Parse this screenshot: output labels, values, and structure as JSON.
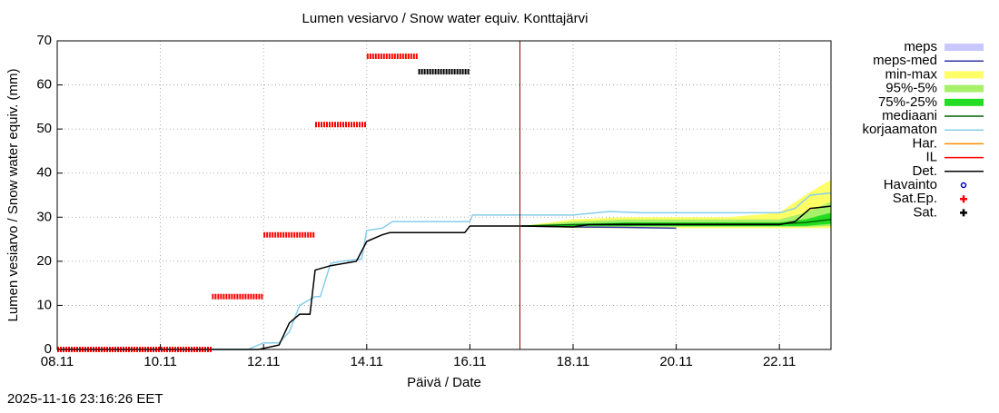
{
  "chart_data": {
    "type": "line",
    "title": "Lumen vesiarvo / Snow water equiv.  Konttajärvi",
    "x_label": "Päivä / Date",
    "y_label": "Lumen vesiarvo / Snow water equiv. (mm)",
    "footer": "2025-11-16 23:16:26 EET",
    "xlim": [
      8,
      23
    ],
    "xticks": [
      {
        "value": 8,
        "label": "08.11"
      },
      {
        "value": 10,
        "label": "10.11"
      },
      {
        "value": 12,
        "label": "12.11"
      },
      {
        "value": 14,
        "label": "14.11"
      },
      {
        "value": 16,
        "label": "16.11"
      },
      {
        "value": 18,
        "label": "18.11"
      },
      {
        "value": 20,
        "label": "20.11"
      },
      {
        "value": 22,
        "label": "22.11"
      }
    ],
    "ylim": [
      0,
      70
    ],
    "yticks": [
      0,
      10,
      20,
      30,
      40,
      50,
      60,
      70
    ],
    "grid": true,
    "legend": "outside-right",
    "now_line": {
      "x": 16.97,
      "color": "#8b0000"
    },
    "series": [
      {
        "name": "meps",
        "kind": "band",
        "color": "#c8c8ff",
        "x": [],
        "low": [],
        "values": []
      },
      {
        "name": "meps-med",
        "kind": "line",
        "color": "#3333aa",
        "x": [
          17,
          18,
          19,
          20
        ],
        "values": [
          28,
          27.8,
          27.7,
          27.5
        ]
      },
      {
        "name": "min-max",
        "kind": "band",
        "color": "#ffff66",
        "x": [
          17,
          18,
          19,
          20,
          21,
          22,
          22.5,
          23
        ],
        "low": [
          28,
          27.5,
          27.5,
          27.5,
          27.5,
          27.5,
          27.5,
          27.5
        ],
        "values": [
          28,
          29.5,
          30,
          30,
          30,
          31,
          35,
          38.5
        ]
      },
      {
        "name": "95%-5%",
        "kind": "band",
        "color": "#a6f06a",
        "x": [
          17,
          18,
          19,
          20,
          21,
          22,
          22.5,
          23
        ],
        "low": [
          28,
          27.8,
          27.8,
          27.8,
          27.8,
          27.8,
          27.8,
          28
        ],
        "values": [
          28,
          29,
          29.5,
          29.5,
          29.5,
          29.5,
          31,
          33.5
        ]
      },
      {
        "name": "75%-25%",
        "kind": "band",
        "color": "#22dd22",
        "x": [
          17,
          18,
          19,
          20,
          21,
          22,
          22.5,
          23
        ],
        "low": [
          28,
          28,
          28,
          28,
          28,
          28,
          28,
          28.5
        ],
        "values": [
          28,
          28.5,
          28.8,
          28.8,
          28.8,
          28.8,
          29.5,
          31
        ]
      },
      {
        "name": "mediaani",
        "kind": "line",
        "color": "#006400",
        "x": [
          17,
          18,
          19,
          20,
          21,
          22,
          22.5,
          23
        ],
        "values": [
          28,
          28.3,
          28.5,
          28.5,
          28.5,
          28.5,
          28.8,
          29.5
        ]
      },
      {
        "name": "korjaamaton",
        "kind": "line",
        "color": "#87ceeb",
        "x": [
          8,
          11.7,
          12.0,
          12.3,
          12.5,
          12.7,
          13.0,
          13.1,
          13.3,
          13.5,
          13.9,
          14.0,
          14.3,
          14.5,
          16.0,
          16.05,
          18,
          18.7,
          19.3,
          22,
          22.3,
          22.6,
          23
        ],
        "values": [
          0,
          0,
          1.5,
          1.5,
          4,
          10,
          12,
          12,
          19.5,
          20,
          20.5,
          27,
          27.5,
          29,
          29,
          30.5,
          30.5,
          31.3,
          31,
          31,
          32,
          35,
          35.5
        ]
      },
      {
        "name": "Har.",
        "kind": "line",
        "color": "#ff8c00",
        "x": [],
        "values": []
      },
      {
        "name": "IL",
        "kind": "line",
        "color": "#ff0000",
        "x": [],
        "values": []
      },
      {
        "name": "Det.",
        "kind": "line",
        "color": "#000000",
        "x": [
          8,
          11.9,
          12.3,
          12.5,
          12.7,
          12.9,
          13.0,
          13.3,
          13.8,
          14.0,
          14.3,
          14.45,
          15.9,
          16.0,
          17,
          18,
          18.3,
          22,
          22.3,
          22.6,
          23
        ],
        "values": [
          0,
          0,
          1,
          6,
          8,
          8,
          18,
          19,
          20,
          24.5,
          26,
          26.5,
          26.5,
          28,
          28,
          27.8,
          28.3,
          28.3,
          29,
          32,
          32.5
        ]
      },
      {
        "name": "Havainto",
        "kind": "points",
        "marker": "circle",
        "color": "#0000cc",
        "x": [],
        "values": []
      },
      {
        "name": "Sat.Ep.",
        "kind": "points",
        "marker": "plus",
        "color": "#ff0000",
        "x": [
          8,
          11,
          11,
          11,
          12,
          12,
          12,
          13,
          13,
          13,
          14,
          14,
          14,
          15
        ],
        "values": [
          0,
          0,
          null,
          12,
          12,
          null,
          26,
          26,
          null,
          51,
          51,
          null,
          66.5,
          66.5
        ]
      },
      {
        "name": "Sat.",
        "kind": "points",
        "marker": "plus",
        "color": "#000000",
        "x": [
          15,
          16
        ],
        "values": [
          63,
          63
        ]
      }
    ]
  }
}
